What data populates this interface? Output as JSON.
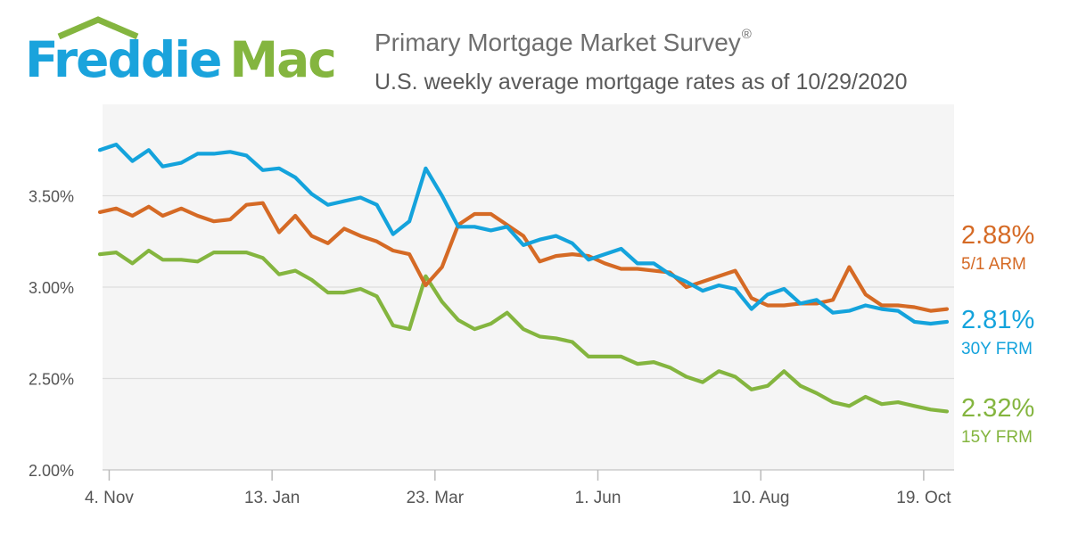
{
  "brand": {
    "logo_text": "FreddieMac",
    "logo_part1": "Freddie",
    "logo_part2": "Mac",
    "color_blue": "#1aa3dc",
    "color_green": "#84b53f"
  },
  "header": {
    "title": "Primary Mortgage Market Survey",
    "title_mark": "®",
    "subtitle": "U.S. weekly average mortgage rates as of 10/29/2020"
  },
  "chart_data": {
    "type": "line",
    "title": "Primary Mortgage Market Survey",
    "subtitle": "U.S. weekly average mortgage rates as of 10/29/2020",
    "x": [
      "2019-10-31",
      "2019-11-07",
      "2019-11-14",
      "2019-11-21",
      "2019-11-27",
      "2019-12-05",
      "2019-12-12",
      "2019-12-19",
      "2019-12-26",
      "2020-01-02",
      "2020-01-09",
      "2020-01-16",
      "2020-01-23",
      "2020-01-30",
      "2020-02-06",
      "2020-02-13",
      "2020-02-20",
      "2020-02-27",
      "2020-03-05",
      "2020-03-12",
      "2020-03-19",
      "2020-03-26",
      "2020-04-02",
      "2020-04-09",
      "2020-04-16",
      "2020-04-23",
      "2020-04-30",
      "2020-05-07",
      "2020-05-14",
      "2020-05-21",
      "2020-05-28",
      "2020-06-04",
      "2020-06-11",
      "2020-06-18",
      "2020-06-25",
      "2020-07-02",
      "2020-07-09",
      "2020-07-16",
      "2020-07-23",
      "2020-07-30",
      "2020-08-06",
      "2020-08-13",
      "2020-08-20",
      "2020-08-27",
      "2020-09-03",
      "2020-09-10",
      "2020-09-17",
      "2020-09-24",
      "2020-10-01",
      "2020-10-08",
      "2020-10-15",
      "2020-10-22",
      "2020-10-29"
    ],
    "xtick_labels": [
      "4. Nov",
      "13. Jan",
      "23. Mar",
      "1. Jun",
      "10. Aug",
      "19. Oct"
    ],
    "xticks": [
      "2019-11-04",
      "2020-01-13",
      "2020-03-23",
      "2020-06-01",
      "2020-08-10",
      "2020-10-19"
    ],
    "ytick_labels": [
      "2.00%",
      "2.50%",
      "3.00%",
      "3.50%"
    ],
    "ylim": [
      2.0,
      4.0
    ],
    "xlabel": "",
    "ylabel": "",
    "grid": true,
    "legend": "right-end labels",
    "series": [
      {
        "name": "30Y FRM",
        "color": "#14a3dc",
        "last_label": "2.81%",
        "values": [
          3.75,
          3.78,
          3.69,
          3.75,
          3.66,
          3.68,
          3.73,
          3.73,
          3.74,
          3.72,
          3.64,
          3.65,
          3.6,
          3.51,
          3.45,
          3.47,
          3.49,
          3.45,
          3.29,
          3.36,
          3.65,
          3.5,
          3.33,
          3.33,
          3.31,
          3.33,
          3.23,
          3.26,
          3.28,
          3.24,
          3.15,
          3.18,
          3.21,
          3.13,
          3.13,
          3.07,
          3.03,
          2.98,
          3.01,
          2.99,
          2.88,
          2.96,
          2.99,
          2.91,
          2.93,
          2.86,
          2.87,
          2.9,
          2.88,
          2.87,
          2.81,
          2.8,
          2.81
        ]
      },
      {
        "name": "5/1 ARM",
        "color": "#d56a25",
        "last_label": "2.88%",
        "values": [
          3.41,
          3.43,
          3.39,
          3.44,
          3.39,
          3.43,
          3.39,
          3.36,
          3.37,
          3.45,
          3.46,
          3.3,
          3.39,
          3.28,
          3.24,
          3.32,
          3.28,
          3.25,
          3.2,
          3.18,
          3.01,
          3.11,
          3.34,
          3.4,
          3.4,
          3.34,
          3.28,
          3.14,
          3.17,
          3.18,
          3.17,
          3.13,
          3.1,
          3.1,
          3.09,
          3.08,
          3.0,
          3.03,
          3.06,
          3.09,
          2.94,
          2.9,
          2.9,
          2.91,
          2.91,
          2.93,
          3.11,
          2.96,
          2.9,
          2.9,
          2.89,
          2.87,
          2.88
        ]
      },
      {
        "name": "15Y FRM",
        "color": "#84b53f",
        "last_label": "2.32%",
        "values": [
          3.18,
          3.19,
          3.13,
          3.2,
          3.15,
          3.15,
          3.14,
          3.19,
          3.19,
          3.19,
          3.16,
          3.07,
          3.09,
          3.04,
          2.97,
          2.97,
          2.99,
          2.95,
          2.79,
          2.77,
          3.06,
          2.92,
          2.82,
          2.77,
          2.8,
          2.86,
          2.77,
          2.73,
          2.72,
          2.7,
          2.62,
          2.62,
          2.62,
          2.58,
          2.59,
          2.56,
          2.51,
          2.48,
          2.54,
          2.51,
          2.44,
          2.46,
          2.54,
          2.46,
          2.42,
          2.37,
          2.35,
          2.4,
          2.36,
          2.37,
          2.35,
          2.33,
          2.32
        ]
      }
    ]
  }
}
